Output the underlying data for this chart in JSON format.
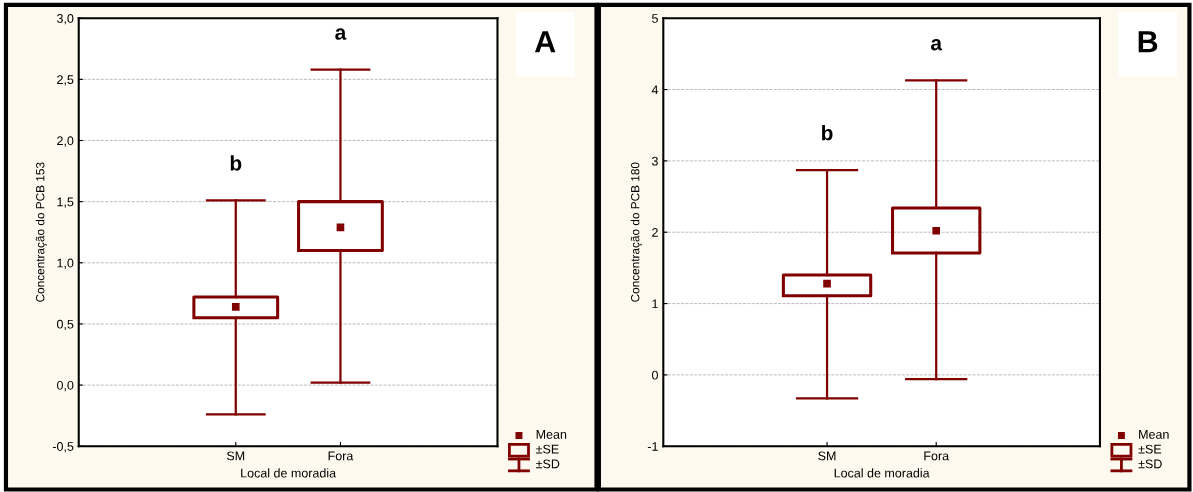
{
  "chart_data": [
    {
      "type": "box",
      "xlabel": "Local de moradia",
      "ylabel": "Concentração do PCB 153",
      "categories": [
        "SM",
        "Fora"
      ],
      "color": "#800000",
      "boxes": [
        {
          "low": -0.24,
          "q1": 0.55,
          "q3": 0.72,
          "high": 1.51,
          "mean": 0.64
        },
        {
          "low": 0.02,
          "q1": 1.1,
          "q3": 1.5,
          "high": 2.58,
          "mean": 1.29
        }
      ],
      "ylim": [
        -0.5,
        3.0
      ],
      "yticks": [
        {
          "value": -0.5,
          "label": "-0,5"
        },
        {
          "value": 0,
          "label": "0,0"
        },
        {
          "value": 0.5,
          "label": "0,5"
        },
        {
          "value": 1,
          "label": "1,0"
        },
        {
          "value": 1.5,
          "label": "1,5"
        },
        {
          "value": 2,
          "label": "2,0"
        },
        {
          "value": 2.5,
          "label": "2,5"
        },
        {
          "value": 3,
          "label": "3,0"
        }
      ],
      "grid": "y",
      "marker": "square",
      "annotations": [
        "A",
        "Mean",
        "±SE",
        "±SD",
        "b",
        "a"
      ]
    },
    {
      "type": "box",
      "xlabel": "Local de moradia",
      "ylabel": "Concentração do PCB 180",
      "categories": [
        "SM",
        "Fora"
      ],
      "color": "#800000",
      "boxes": [
        {
          "low": -0.33,
          "q1": 1.11,
          "q3": 1.4,
          "high": 2.87,
          "mean": 1.28
        },
        {
          "low": -0.06,
          "q1": 1.71,
          "q3": 2.34,
          "high": 4.13,
          "mean": 2.02
        }
      ],
      "ylim": [
        -1,
        5
      ],
      "yticks": [
        -1,
        0,
        1,
        2,
        3,
        4,
        5
      ],
      "grid": "y",
      "marker": "square",
      "annotations": [
        "B",
        "Mean",
        "±SE",
        "±SD",
        "b",
        "a"
      ]
    }
  ]
}
